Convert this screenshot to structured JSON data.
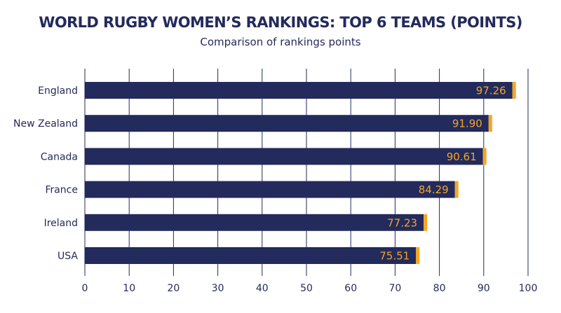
{
  "chart_data": {
    "type": "bar",
    "orientation": "horizontal",
    "title": "WORLD RUGBY WOMEN’S RANKINGS: TOP 6 TEAMS (POINTS)",
    "subtitle": "Comparison of rankings points",
    "xlabel": "",
    "ylabel": "",
    "categories": [
      "England",
      "New Zealand",
      "Canada",
      "France",
      "Ireland",
      "USA"
    ],
    "values": [
      97.26,
      91.9,
      90.61,
      84.29,
      77.23,
      75.51
    ],
    "value_labels": [
      "97.26",
      "91.90",
      "90.61",
      "84.29",
      "77.23",
      "75.51"
    ],
    "xlim": [
      0,
      100
    ],
    "ticks": [
      0,
      10,
      20,
      30,
      40,
      50,
      60,
      70,
      80,
      90,
      100
    ],
    "tick_labels": [
      "0",
      "10",
      "20",
      "30",
      "40",
      "50",
      "60",
      "70",
      "80",
      "90",
      "100"
    ],
    "grid": "vertical",
    "legend": "none",
    "colors": {
      "bar": "#232a5c",
      "bar_cap": "#f5a623",
      "value_text": "#f5a623",
      "text": "#232a5c",
      "grid": "#232a5c"
    }
  }
}
